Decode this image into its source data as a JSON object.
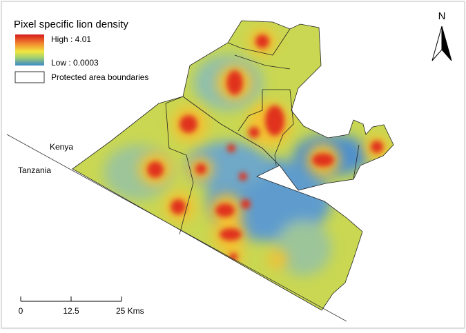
{
  "legend": {
    "title": "Pixel specific lion density",
    "high": "High : 4.01",
    "low": "Low : 0.0003",
    "boundaries": "Protected area boundaries"
  },
  "north_arrow": "N",
  "labels": {
    "kenya": "Kenya",
    "tanzania": "Tanzania"
  },
  "scale_bar": {
    "ticks": [
      "0",
      "12.5",
      "25 Kms"
    ]
  }
}
